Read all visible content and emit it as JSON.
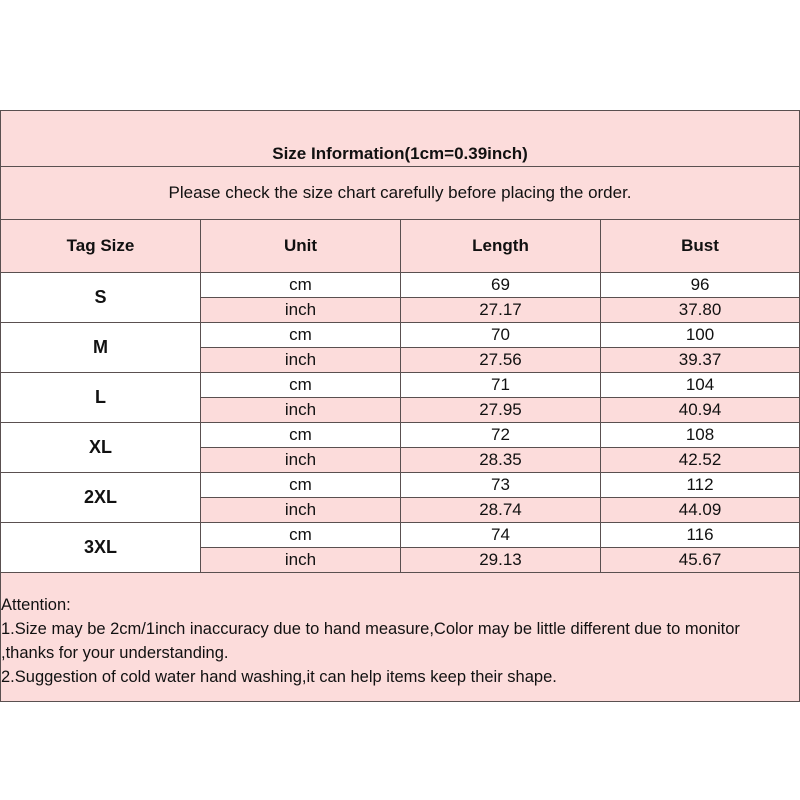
{
  "title": "Size Information(1cm=0.39inch)",
  "notice": "Please check the size chart carefully before placing the order.",
  "headers": [
    "Tag Size",
    "Unit",
    "Length",
    "Bust"
  ],
  "rows": [
    {
      "size": "S",
      "cm": {
        "unit": "cm",
        "length": "69",
        "bust": "96"
      },
      "inch": {
        "unit": "inch",
        "length": "27.17",
        "bust": "37.80"
      }
    },
    {
      "size": "M",
      "cm": {
        "unit": "cm",
        "length": "70",
        "bust": "100"
      },
      "inch": {
        "unit": "inch",
        "length": "27.56",
        "bust": "39.37"
      }
    },
    {
      "size": "L",
      "cm": {
        "unit": "cm",
        "length": "71",
        "bust": "104"
      },
      "inch": {
        "unit": "inch",
        "length": "27.95",
        "bust": "40.94"
      }
    },
    {
      "size": "XL",
      "cm": {
        "unit": "cm",
        "length": "72",
        "bust": "108"
      },
      "inch": {
        "unit": "inch",
        "length": "28.35",
        "bust": "42.52"
      }
    },
    {
      "size": "2XL",
      "cm": {
        "unit": "cm",
        "length": "73",
        "bust": "112"
      },
      "inch": {
        "unit": "inch",
        "length": "28.74",
        "bust": "44.09"
      }
    },
    {
      "size": "3XL",
      "cm": {
        "unit": "cm",
        "length": "74",
        "bust": "116"
      },
      "inch": {
        "unit": "inch",
        "length": "29.13",
        "bust": "45.67"
      }
    }
  ],
  "attention": [
    "Attention:",
    "1.Size may be 2cm/1inch inaccuracy due to hand measure,Color may be little different due to monitor",
    ",thanks for your understanding.",
    "2.Suggestion of cold water hand washing,it can help items keep their shape."
  ],
  "colors": {
    "pink": "#fcdcdb",
    "border": "#5a5050"
  }
}
